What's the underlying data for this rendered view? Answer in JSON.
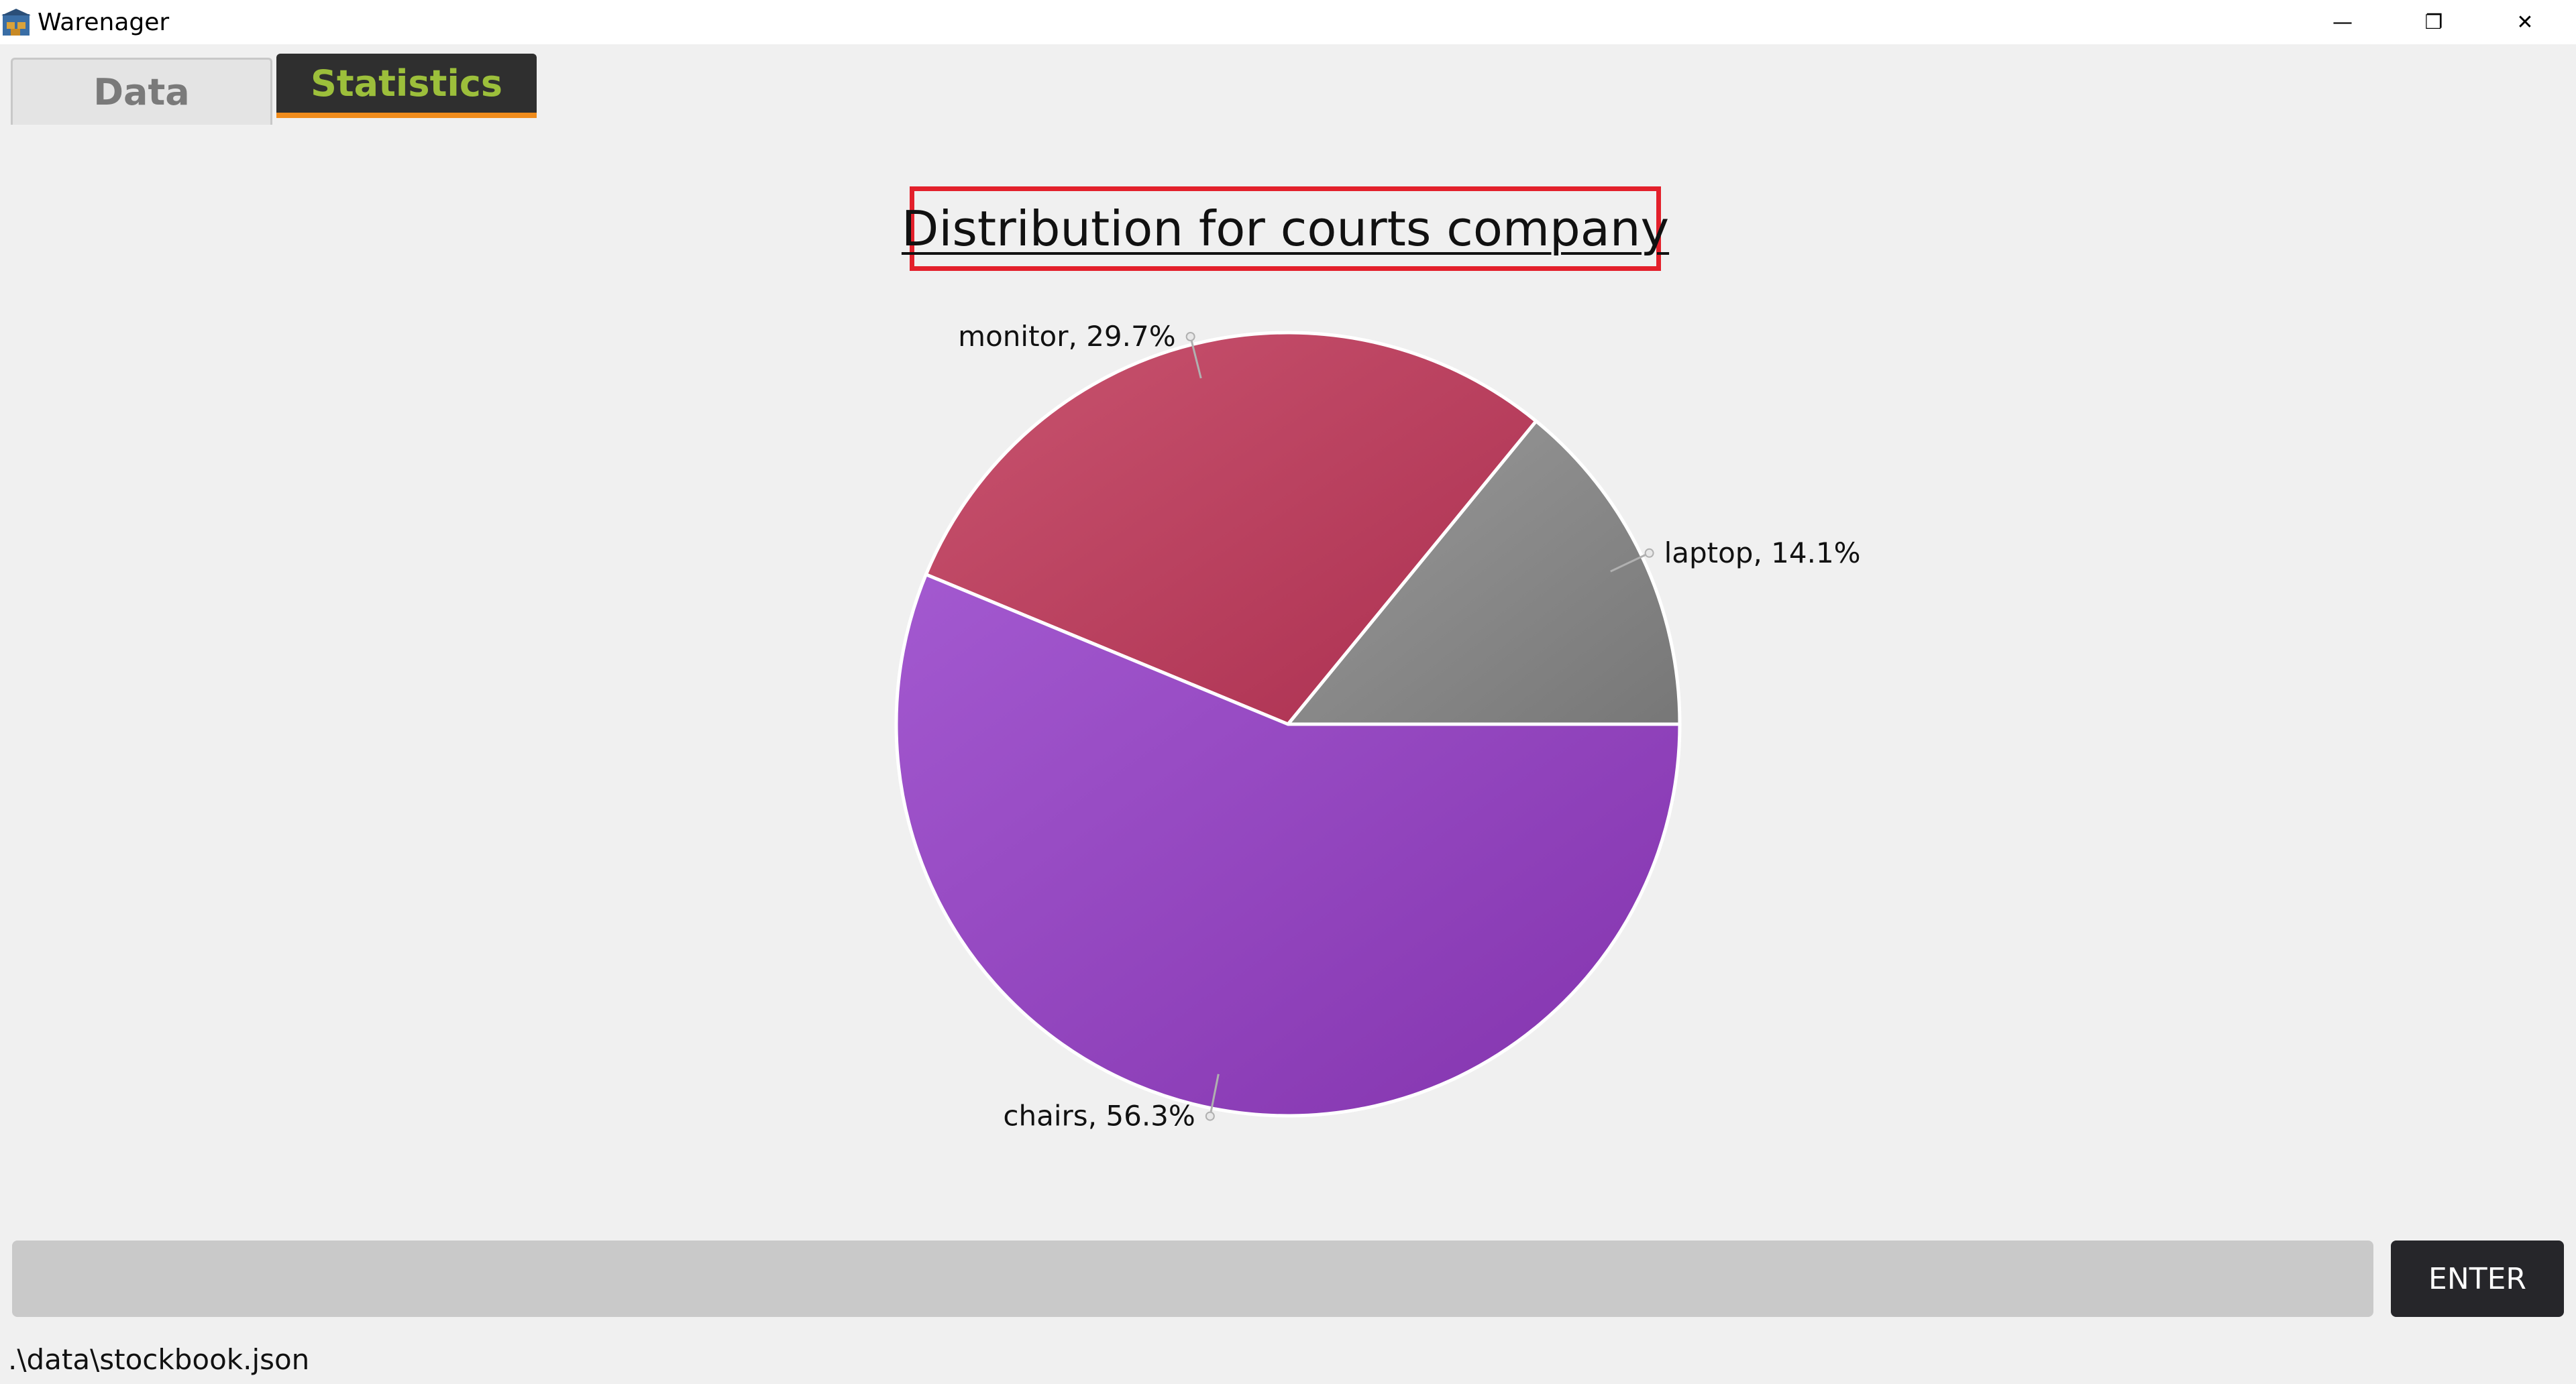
{
  "window": {
    "title": "Warenager",
    "controls": {
      "minimize": "—",
      "restore": "❐",
      "close": "✕"
    }
  },
  "tabs": [
    {
      "label": "Data",
      "active": false
    },
    {
      "label": "Statistics",
      "active": true
    }
  ],
  "colors": {
    "accent_tab_text": "#9cbf3b",
    "tab_underline": "#f08c1c",
    "title_highlight": "#e3202b",
    "slice_chairs": "#8e3fb7",
    "slice_monitor": "#b7375a",
    "slice_laptop": "#808080"
  },
  "chart_data": {
    "type": "pie",
    "title": "Distribution for courts company",
    "slices": [
      {
        "name": "laptop",
        "value": 14.1,
        "label": "laptop, 14.1%",
        "color": "#808080"
      },
      {
        "name": "monitor",
        "value": 29.7,
        "label": "monitor, 29.7%",
        "color": "#b7375a"
      },
      {
        "name": "chairs",
        "value": 56.3,
        "label": "chairs, 56.3%",
        "color": "#8e3fb7"
      }
    ],
    "start_angle_deg": 0,
    "direction": "counterclockwise",
    "legend": "none"
  },
  "command": {
    "value": "",
    "button_label": "ENTER"
  },
  "status": {
    "file_path": ".\\data\\stockbook.json"
  }
}
